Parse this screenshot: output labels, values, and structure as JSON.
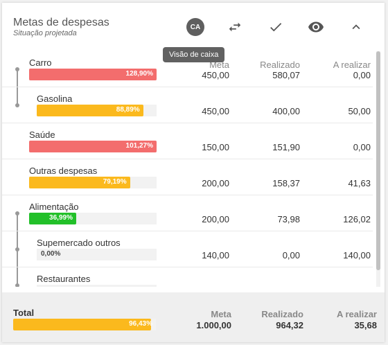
{
  "header": {
    "title": "Metas de despesas",
    "subtitle": "Situação projetada",
    "ca_label": "CA",
    "tooltip": "Visão de caixa"
  },
  "columns": {
    "meta": "Meta",
    "realizado": "Realizado",
    "a_realizar": "A realizar"
  },
  "colors": {
    "red": "#f36d6d",
    "orange": "#fbb91d",
    "green": "#22c029",
    "empty": "#f2f2f2"
  },
  "rows": [
    {
      "label": "Carro",
      "pct": "128,90%",
      "fill": 1.0,
      "color": "#f36d6d",
      "meta": "450,00",
      "realizado": "580,07",
      "a_realizar": "0,00"
    },
    {
      "label": "Gasolina",
      "pct": "88,89%",
      "fill": 0.8889,
      "color": "#fbb91d",
      "meta": "450,00",
      "realizado": "400,00",
      "a_realizar": "50,00"
    },
    {
      "label": "Saúde",
      "pct": "101,27%",
      "fill": 1.0,
      "color": "#f36d6d",
      "meta": "150,00",
      "realizado": "151,90",
      "a_realizar": "0,00"
    },
    {
      "label": "Outras despesas",
      "pct": "79,19%",
      "fill": 0.7919,
      "color": "#fbb91d",
      "meta": "200,00",
      "realizado": "158,37",
      "a_realizar": "41,63"
    },
    {
      "label": "Alimentação",
      "pct": "36,99%",
      "fill": 0.3699,
      "color": "#22c029",
      "meta": "200,00",
      "realizado": "73,98",
      "a_realizar": "126,02"
    },
    {
      "label": "Supemercado outros",
      "pct": "0,00%",
      "fill": 0.0,
      "color": "#f2f2f2",
      "meta": "140,00",
      "realizado": "0,00",
      "a_realizar": "140,00"
    },
    {
      "label": "Restaurantes",
      "pct": "",
      "fill": 0.0,
      "color": "#f2f2f2",
      "meta": "",
      "realizado": "",
      "a_realizar": ""
    }
  ],
  "footer": {
    "label": "Total",
    "pct": "96,43%",
    "fill": 0.9643,
    "color": "#fbb91d",
    "meta_label": "Meta",
    "meta": "1.000,00",
    "realizado_label": "Realizado",
    "realizado": "964,32",
    "a_realizar_label": "A realizar",
    "a_realizar": "35,68"
  },
  "icons": [
    "swap-icon",
    "check-icon",
    "eye-icon",
    "chevron-up-icon"
  ]
}
